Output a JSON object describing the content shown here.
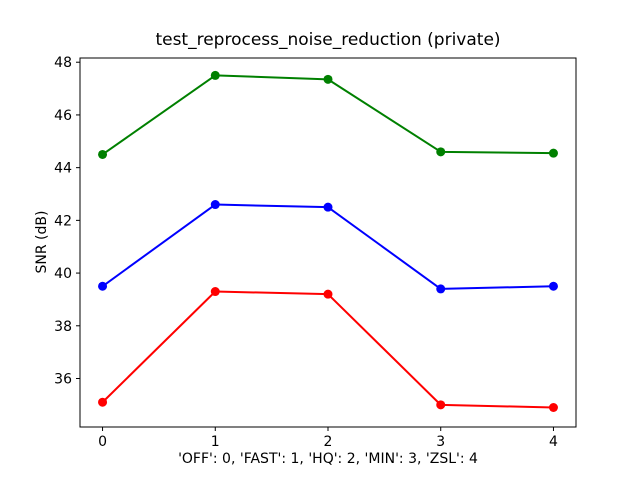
{
  "chart_data": {
    "type": "line",
    "title": "test_reprocess_noise_reduction (private)",
    "xlabel": "'OFF': 0, 'FAST': 1, 'HQ': 2, 'MIN': 3, 'ZSL': 4",
    "ylabel": "SNR (dB)",
    "x": [
      0,
      1,
      2,
      3,
      4
    ],
    "xticks": [
      0,
      1,
      2,
      3,
      4
    ],
    "yticks": [
      36,
      38,
      40,
      42,
      44,
      46,
      48
    ],
    "xlim": [
      -0.2,
      4.2
    ],
    "ylim": [
      34.16,
      48.16
    ],
    "grid": false,
    "legend": false,
    "marker": "o",
    "background_color": "#ffffff",
    "axes_color": "#000000",
    "series": [
      {
        "name": "green",
        "color": "#008000",
        "values": [
          44.5,
          47.5,
          47.35,
          44.6,
          44.55
        ]
      },
      {
        "name": "blue",
        "color": "#0000ff",
        "values": [
          39.5,
          42.6,
          42.5,
          39.4,
          39.5
        ]
      },
      {
        "name": "red",
        "color": "#ff0000",
        "values": [
          35.1,
          39.3,
          39.2,
          35.0,
          34.9
        ]
      }
    ]
  }
}
